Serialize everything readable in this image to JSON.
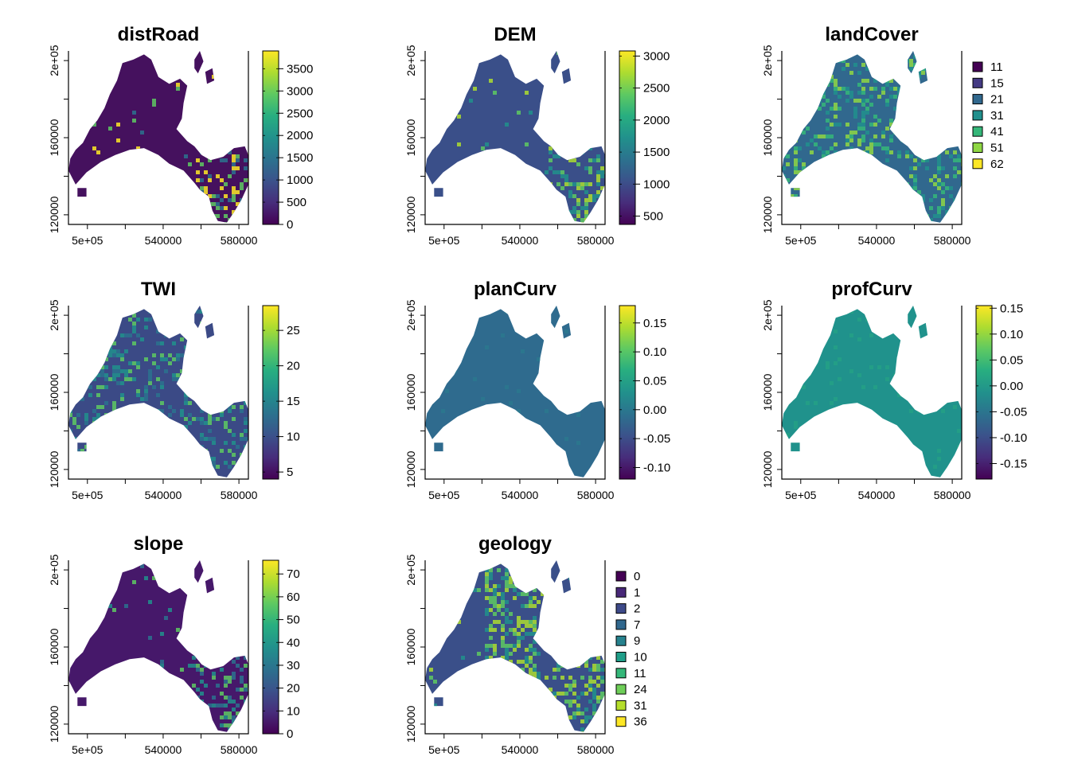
{
  "figure": {
    "x_ticks": [
      "5e+05",
      "540000",
      "580000"
    ],
    "y_ticks": [
      "120000",
      "160000",
      "2e+05"
    ]
  },
  "palettes": {
    "viridis": [
      "#440154",
      "#472d7b",
      "#3b528b",
      "#2c728e",
      "#21918c",
      "#28ae80",
      "#5ec962",
      "#addc30",
      "#fde725"
    ]
  },
  "chart_data": [
    {
      "type": "heatmap",
      "title": "distRoad",
      "xlim": [
        490000,
        585000
      ],
      "ylim": [
        115000,
        205000
      ],
      "legend": {
        "kind": "continuous",
        "range": [
          0,
          3900
        ],
        "ticks": [
          "0",
          "500",
          "1000",
          "1500",
          "2000",
          "2500",
          "3000",
          "3500"
        ],
        "tick_values": [
          0,
          500,
          1000,
          1500,
          2000,
          2500,
          3000,
          3500
        ]
      },
      "raster_style": {
        "base": "#45115e",
        "hi_region": "se",
        "hi_colors": [
          "#2c728e",
          "#5ec962",
          "#fde725"
        ]
      }
    },
    {
      "type": "heatmap",
      "title": "DEM",
      "xlim": [
        490000,
        585000
      ],
      "ylim": [
        115000,
        205000
      ],
      "legend": {
        "kind": "continuous",
        "range": [
          370,
          3080
        ],
        "ticks": [
          "500",
          "1000",
          "1500",
          "2000",
          "2500",
          "3000"
        ],
        "tick_values": [
          500,
          1000,
          1500,
          2000,
          2500,
          3000
        ]
      },
      "raster_style": {
        "base": "#3a4f89",
        "hi_region": "se",
        "hi_colors": [
          "#21918c",
          "#5ec962",
          "#addc30"
        ]
      }
    },
    {
      "type": "heatmap",
      "title": "landCover",
      "xlim": [
        490000,
        585000
      ],
      "ylim": [
        115000,
        205000
      ],
      "legend": {
        "kind": "categorical",
        "categories": [
          "11",
          "15",
          "21",
          "31",
          "41",
          "51",
          "62"
        ],
        "colors": [
          "#440154",
          "#443a83",
          "#31688e",
          "#21908d",
          "#35b779",
          "#8fd744",
          "#fde725"
        ]
      },
      "raster_style": {
        "base": "#31688e",
        "hi_region": "all",
        "hi_colors": [
          "#35b779",
          "#8fd744",
          "#21908d"
        ]
      }
    },
    {
      "type": "heatmap",
      "title": "TWI",
      "xlim": [
        490000,
        585000
      ],
      "ylim": [
        115000,
        205000
      ],
      "legend": {
        "kind": "continuous",
        "range": [
          4,
          28.5
        ],
        "ticks": [
          "5",
          "10",
          "15",
          "20",
          "25"
        ],
        "tick_values": [
          5,
          10,
          15,
          20,
          25
        ]
      },
      "raster_style": {
        "base": "#3b4a86",
        "hi_region": "all",
        "hi_colors": [
          "#21918c",
          "#5ec962",
          "#2c728e"
        ]
      }
    },
    {
      "type": "heatmap",
      "title": "planCurv",
      "xlim": [
        490000,
        585000
      ],
      "ylim": [
        115000,
        205000
      ],
      "legend": {
        "kind": "continuous",
        "range": [
          -0.12,
          0.18
        ],
        "ticks": [
          "-0.10",
          "-0.05",
          "0.00",
          "0.05",
          "0.10",
          "0.15"
        ],
        "tick_values": [
          -0.1,
          -0.05,
          0.0,
          0.05,
          0.1,
          0.15
        ]
      },
      "raster_style": {
        "base": "#2f6b8e",
        "hi_region": "none",
        "hi_colors": [
          "#2a788e"
        ]
      }
    },
    {
      "type": "heatmap",
      "title": "profCurv",
      "xlim": [
        490000,
        585000
      ],
      "ylim": [
        115000,
        205000
      ],
      "legend": {
        "kind": "continuous",
        "range": [
          -0.18,
          0.155
        ],
        "ticks": [
          "-0.15",
          "-0.10",
          "-0.05",
          "0.00",
          "0.05",
          "0.10",
          "0.15"
        ],
        "tick_values": [
          -0.15,
          -0.1,
          -0.05,
          0.0,
          0.05,
          0.1,
          0.15
        ]
      },
      "raster_style": {
        "base": "#20928c",
        "hi_region": "none",
        "hi_colors": [
          "#25a085"
        ]
      }
    },
    {
      "type": "heatmap",
      "title": "slope",
      "xlim": [
        490000,
        585000
      ],
      "ylim": [
        115000,
        205000
      ],
      "legend": {
        "kind": "continuous",
        "range": [
          0,
          76
        ],
        "ticks": [
          "0",
          "10",
          "20",
          "30",
          "40",
          "50",
          "60",
          "70"
        ],
        "tick_values": [
          0,
          10,
          20,
          30,
          40,
          50,
          60,
          70
        ]
      },
      "raster_style": {
        "base": "#46186a",
        "hi_region": "se",
        "hi_colors": [
          "#2c728e",
          "#21918c",
          "#5ec962"
        ]
      }
    },
    {
      "type": "heatmap",
      "title": "geology",
      "xlim": [
        490000,
        585000
      ],
      "ylim": [
        115000,
        205000
      ],
      "legend": {
        "kind": "categorical",
        "categories": [
          "0",
          "1",
          "2",
          "7",
          "9",
          "10",
          "11",
          "24",
          "31",
          "36"
        ],
        "colors": [
          "#440154",
          "#482878",
          "#3e4a89",
          "#31688e",
          "#26828e",
          "#1f9e89",
          "#35b779",
          "#6ece58",
          "#b5de2b",
          "#fde725"
        ]
      },
      "raster_style": {
        "base": "#3a4f89",
        "hi_region": "mixed",
        "hi_colors": [
          "#addc30",
          "#5ec962",
          "#21918c"
        ]
      }
    }
  ]
}
